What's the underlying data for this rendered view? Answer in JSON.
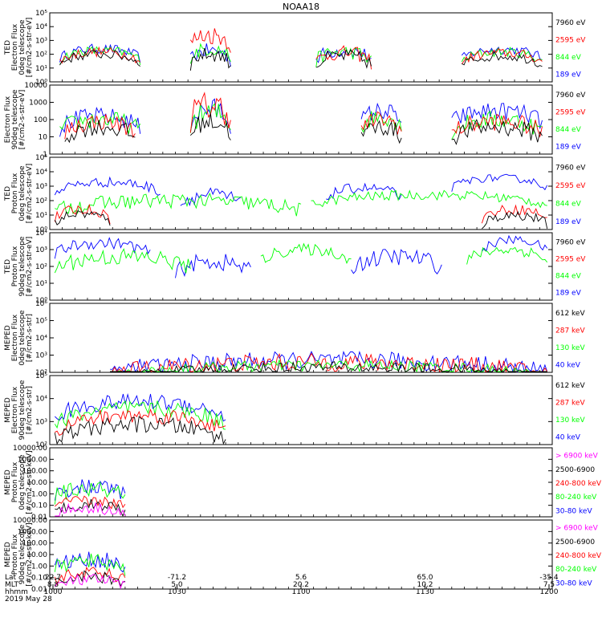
{
  "title": "NOAA18",
  "colors": {
    "black": "#000000",
    "red": "#ff0000",
    "green": "#00ff00",
    "blue": "#0000ff",
    "magenta": "#ff00ff"
  },
  "time_axis": {
    "row_labels": [
      "Lat",
      "MLT",
      "hhmm"
    ],
    "date": "2019 May 28",
    "ticks": [
      {
        "lat": "22.7",
        "mlt": "8.8",
        "hhmm": "1000"
      },
      {
        "lat": "-71.2",
        "mlt": "5.0",
        "hhmm": "1030"
      },
      {
        "lat": "5.6",
        "mlt": "20.2",
        "hhmm": "1100"
      },
      {
        "lat": "65.0",
        "mlt": "10.2",
        "hhmm": "1130"
      },
      {
        "lat": "-35.4",
        "mlt": "7.5",
        "hhmm": "1200"
      }
    ]
  },
  "chart_data": [
    {
      "type": "line",
      "log": true,
      "ylabel": [
        "TED",
        "Electron Flux",
        "0deg telescope",
        "[#/cm2-s-str-eV]"
      ],
      "yticks": [
        "10⁰",
        "10¹",
        "10²",
        "10³",
        "10⁴",
        "10⁵"
      ],
      "ylim": [
        1,
        100000
      ],
      "legend": [
        {
          "label": "7960 eV",
          "color": "#000000"
        },
        {
          "label": "2595 eV",
          "color": "#ff0000"
        },
        {
          "label": "844 eV",
          "color": "#00ff00"
        },
        {
          "label": "189 eV",
          "color": "#0000ff"
        }
      ],
      "series": [
        {
          "color": "#0000ff",
          "segments": [
            [
              0.02,
              0.18,
              200,
              2
            ],
            [
              0.28,
              0.36,
              150,
              3
            ],
            [
              0.53,
              0.64,
              150,
              3
            ],
            [
              0.82,
              0.98,
              180,
              2
            ]
          ]
        },
        {
          "color": "#00ff00",
          "segments": [
            [
              0.02,
              0.18,
              150,
              2
            ],
            [
              0.28,
              0.36,
              200,
              3
            ],
            [
              0.53,
              0.64,
              120,
              3
            ],
            [
              0.82,
              0.98,
              120,
              2
            ]
          ]
        },
        {
          "color": "#ff0000",
          "segments": [
            [
              0.02,
              0.18,
              120,
              2
            ],
            [
              0.28,
              0.36,
              2000,
              4
            ],
            [
              0.53,
              0.64,
              100,
              3
            ],
            [
              0.82,
              0.98,
              100,
              2
            ]
          ]
        },
        {
          "color": "#000000",
          "segments": [
            [
              0.02,
              0.18,
              80,
              2
            ],
            [
              0.28,
              0.36,
              80,
              3
            ],
            [
              0.53,
              0.64,
              60,
              3
            ],
            [
              0.82,
              0.98,
              60,
              2
            ]
          ]
        }
      ]
    },
    {
      "type": "line",
      "log": true,
      "ylabel": [
        "Electron Flux",
        "90deg telescope",
        "[#/cm2-s-str-eV]"
      ],
      "yticks": [
        "1",
        "10",
        "100",
        "1000",
        "10000"
      ],
      "ylim": [
        1,
        10000
      ],
      "legend": [
        {
          "label": "7960 eV",
          "color": "#000000"
        },
        {
          "label": "2595 eV",
          "color": "#ff0000"
        },
        {
          "label": "844 eV",
          "color": "#00ff00"
        },
        {
          "label": "189 eV",
          "color": "#0000ff"
        }
      ],
      "series": [
        {
          "color": "#0000ff",
          "segments": [
            [
              0.02,
              0.18,
              120,
              3
            ],
            [
              0.28,
              0.36,
              300,
              4
            ],
            [
              0.62,
              0.7,
              250,
              3
            ],
            [
              0.8,
              0.98,
              250,
              3
            ]
          ]
        },
        {
          "color": "#00ff00",
          "segments": [
            [
              0.02,
              0.18,
              80,
              3
            ],
            [
              0.28,
              0.36,
              200,
              4
            ],
            [
              0.62,
              0.7,
              120,
              3
            ],
            [
              0.8,
              0.98,
              80,
              3
            ]
          ]
        },
        {
          "color": "#ff0000",
          "segments": [
            [
              0.03,
              0.17,
              60,
              3
            ],
            [
              0.28,
              0.36,
              500,
              5
            ],
            [
              0.62,
              0.7,
              80,
              3
            ],
            [
              0.8,
              0.98,
              60,
              3
            ]
          ]
        },
        {
          "color": "#000000",
          "segments": [
            [
              0.03,
              0.17,
              30,
              3
            ],
            [
              0.28,
              0.36,
              60,
              3
            ],
            [
              0.62,
              0.7,
              30,
              3
            ],
            [
              0.8,
              0.98,
              30,
              3
            ]
          ]
        }
      ]
    },
    {
      "type": "line",
      "log": true,
      "ylabel": [
        "TED",
        "Proton Flux",
        "0deg telescope",
        "[#/cm2-s-str-eV]"
      ],
      "yticks": [
        "10⁰",
        "10¹",
        "10²",
        "10³",
        "10⁴",
        "10⁵"
      ],
      "ylim": [
        1,
        100000
      ],
      "legend": [
        {
          "label": "7960 eV",
          "color": "#000000"
        },
        {
          "label": "2595 eV",
          "color": "#ff0000"
        },
        {
          "label": "844 eV",
          "color": "#00ff00"
        },
        {
          "label": "189 eV",
          "color": "#0000ff"
        }
      ],
      "series": [
        {
          "color": "#0000ff",
          "segments": [
            [
              0.01,
              0.22,
              1500,
              2
            ],
            [
              0.26,
              0.38,
              200,
              3
            ],
            [
              0.55,
              0.7,
              600,
              2
            ],
            [
              0.8,
              0.99,
              3000,
              1.5
            ]
          ]
        },
        {
          "color": "#00ff00",
          "segments": [
            [
              0.01,
              0.5,
              80,
              3
            ],
            [
              0.52,
              0.99,
              200,
              2
            ]
          ]
        },
        {
          "color": "#ff0000",
          "segments": [
            [
              0.01,
              0.12,
              20,
              2
            ],
            [
              0.86,
              0.99,
              20,
              2
            ]
          ]
        },
        {
          "color": "#000000",
          "segments": [
            [
              0.01,
              0.12,
              10,
              2
            ],
            [
              0.86,
              0.99,
              8,
              2
            ]
          ]
        }
      ]
    },
    {
      "type": "line",
      "log": true,
      "ylabel": [
        "TED",
        "Proton Flux",
        "90deg telescope",
        "[#/cm2-s-str-eV]"
      ],
      "yticks": [
        "10⁰",
        "10¹",
        "10²",
        "10³",
        "10⁴"
      ],
      "ylim": [
        1,
        10000
      ],
      "legend": [
        {
          "label": "7960 eV",
          "color": "#000000"
        },
        {
          "label": "2595 eV",
          "color": "#ff0000"
        },
        {
          "label": "844 eV",
          "color": "#00ff00"
        },
        {
          "label": "189 eV",
          "color": "#0000ff"
        }
      ],
      "series": [
        {
          "color": "#0000ff",
          "segments": [
            [
              0.01,
              0.2,
              2000,
              2
            ],
            [
              0.25,
              0.4,
              150,
              3
            ],
            [
              0.6,
              0.78,
              300,
              3
            ],
            [
              0.86,
              0.99,
              3000,
              1.5
            ]
          ]
        },
        {
          "color": "#00ff00",
          "segments": [
            [
              0.01,
              0.28,
              300,
              3
            ],
            [
              0.42,
              0.6,
              800,
              2
            ],
            [
              0.83,
              0.99,
              800,
              2
            ]
          ]
        }
      ]
    },
    {
      "type": "line",
      "log": true,
      "ylabel": [
        "MEPED",
        "Electron Flux",
        "0deg telescope",
        "[#/cm2-s-str]"
      ],
      "yticks": [
        "10²",
        "10³",
        "10⁴",
        "10⁵",
        "10⁶"
      ],
      "ylim": [
        100,
        1000000
      ],
      "legend": [
        {
          "label": "612 keV",
          "color": "#000000"
        },
        {
          "label": "287 keV",
          "color": "#ff0000"
        },
        {
          "label": "130 keV",
          "color": "#00ff00"
        },
        {
          "label": "40 keV",
          "color": "#0000ff"
        }
      ],
      "series": [
        {
          "color": "#0000ff",
          "segments": [
            [
              0.12,
              0.99,
              400,
              3
            ]
          ]
        },
        {
          "color": "#ff0000",
          "segments": [
            [
              0.12,
              0.99,
              300,
              3
            ]
          ]
        },
        {
          "color": "#00ff00",
          "segments": [
            [
              0.12,
              0.99,
              200,
              2
            ]
          ]
        },
        {
          "color": "#000000",
          "segments": [
            [
              0.12,
              0.99,
              150,
              2
            ]
          ]
        }
      ]
    },
    {
      "type": "line",
      "log": true,
      "ylabel": [
        "MEPED",
        "Electron Flux",
        "90deg telescope",
        "[#/cm2-s-str]"
      ],
      "yticks": [
        "10²",
        "10³",
        "10⁴",
        "10⁵"
      ],
      "ylim": [
        100,
        100000
      ],
      "legend": [
        {
          "label": "612 keV",
          "color": "#000000"
        },
        {
          "label": "287 keV",
          "color": "#ff0000"
        },
        {
          "label": "130 keV",
          "color": "#00ff00"
        },
        {
          "label": "40 keV",
          "color": "#0000ff"
        }
      ],
      "series": [
        {
          "color": "#0000ff",
          "segments": [
            [
              0.01,
              0.35,
              6000,
              2
            ]
          ]
        },
        {
          "color": "#00ff00",
          "segments": [
            [
              0.01,
              0.35,
              3000,
              2
            ]
          ]
        },
        {
          "color": "#ff0000",
          "segments": [
            [
              0.01,
              0.35,
              1500,
              2
            ]
          ]
        },
        {
          "color": "#000000",
          "segments": [
            [
              0.01,
              0.35,
              600,
              2
            ]
          ]
        }
      ]
    },
    {
      "type": "line",
      "log": true,
      "ylabel": [
        "MEPED",
        "Proton Flux",
        "0deg telescope",
        "[#/cm2-s-str-keV]"
      ],
      "yticks": [
        "0.01",
        "0.10",
        "1.00",
        "10.00",
        "100.00",
        "1000.00",
        "10000.00"
      ],
      "ylim": [
        0.01,
        10000
      ],
      "legend": [
        {
          "label": "> 6900 keV",
          "color": "#ff00ff"
        },
        {
          "label": "2500-6900",
          "color": "#000000"
        },
        {
          "label": "240-800 keV",
          "color": "#ff0000"
        },
        {
          "label": "80-240 keV",
          "color": "#00ff00"
        },
        {
          "label": "30-80 keV",
          "color": "#0000ff"
        }
      ],
      "series": [
        {
          "color": "#0000ff",
          "segments": [
            [
              0.01,
              0.15,
              3,
              4
            ]
          ]
        },
        {
          "color": "#00ff00",
          "segments": [
            [
              0.01,
              0.15,
              2,
              4
            ]
          ]
        },
        {
          "color": "#ff0000",
          "segments": [
            [
              0.01,
              0.15,
              0.2,
              3
            ]
          ]
        },
        {
          "color": "#000000",
          "segments": [
            [
              0.01,
              0.15,
              0.1,
              3
            ]
          ]
        },
        {
          "color": "#ff00ff",
          "segments": [
            [
              0.01,
              0.15,
              0.05,
              3
            ]
          ]
        }
      ]
    },
    {
      "type": "line",
      "log": true,
      "ylabel": [
        "MEPED",
        "Proton Flux",
        "90deg telescope",
        "[#/cm2-s-str-keV]"
      ],
      "yticks": [
        "0.01",
        "0.10",
        "1.00",
        "10.00",
        "100.00",
        "1000.00",
        "10000.00"
      ],
      "ylim": [
        0.01,
        10000
      ],
      "legend": [
        {
          "label": "> 6900 keV",
          "color": "#ff00ff"
        },
        {
          "label": "2500-6900",
          "color": "#000000"
        },
        {
          "label": "240-800 keV",
          "color": "#ff0000"
        },
        {
          "label": "80-240 keV",
          "color": "#00ff00"
        },
        {
          "label": "30-80 keV",
          "color": "#0000ff"
        }
      ],
      "series": [
        {
          "color": "#0000ff",
          "segments": [
            [
              0.01,
              0.15,
              3,
              4
            ]
          ]
        },
        {
          "color": "#00ff00",
          "segments": [
            [
              0.01,
              0.15,
              2,
              4
            ]
          ]
        },
        {
          "color": "#ff0000",
          "segments": [
            [
              0.01,
              0.15,
              0.2,
              3
            ]
          ]
        },
        {
          "color": "#000000",
          "segments": [
            [
              0.01,
              0.15,
              0.1,
              3
            ]
          ]
        },
        {
          "color": "#ff00ff",
          "segments": [
            [
              0.01,
              0.15,
              0.05,
              3
            ]
          ]
        }
      ]
    }
  ]
}
